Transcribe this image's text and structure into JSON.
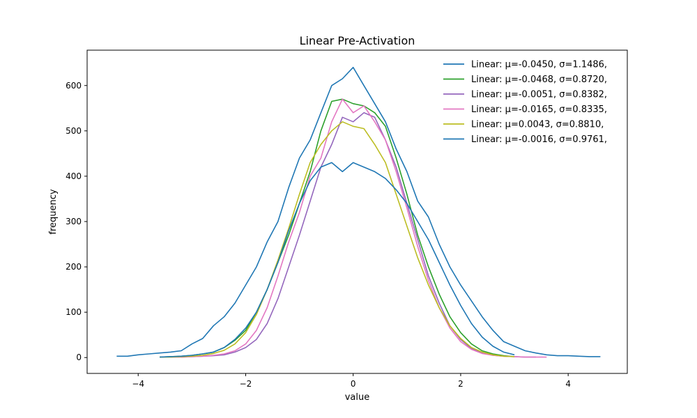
{
  "chart_data": {
    "type": "line",
    "title": "Linear Pre-Activation",
    "xlabel": "value",
    "ylabel": "frequency",
    "xlim": [
      -4.95,
      5.1
    ],
    "ylim": [
      -35,
      678
    ],
    "xticks": [
      -4,
      -2,
      0,
      2,
      4
    ],
    "xtick_labels": [
      "−4",
      "−2",
      "0",
      "2",
      "4"
    ],
    "yticks": [
      0,
      100,
      200,
      300,
      400,
      500,
      600
    ],
    "ytick_labels": [
      "0",
      "100",
      "200",
      "300",
      "400",
      "500",
      "600"
    ],
    "grid": false,
    "legend_position": "top-right",
    "series": [
      {
        "name": "Linear: μ=-0.0450, σ=1.1486,",
        "color": "#1f77b4",
        "x": [
          -4.4,
          -4.2,
          -4.0,
          -3.8,
          -3.6,
          -3.4,
          -3.2,
          -3.0,
          -2.8,
          -2.6,
          -2.4,
          -2.2,
          -2.0,
          -1.8,
          -1.6,
          -1.4,
          -1.2,
          -1.0,
          -0.8,
          -0.6,
          -0.4,
          -0.2,
          0.0,
          0.2,
          0.4,
          0.6,
          0.8,
          1.0,
          1.2,
          1.4,
          1.6,
          1.8,
          2.0,
          2.2,
          2.4,
          2.6,
          2.8,
          3.0,
          3.2,
          3.4,
          3.6,
          3.8,
          4.0,
          4.2,
          4.4,
          4.6
        ],
        "y": [
          3,
          3,
          6,
          8,
          10,
          12,
          15,
          30,
          42,
          70,
          90,
          120,
          160,
          200,
          255,
          300,
          375,
          440,
          480,
          540,
          600,
          615,
          640,
          600,
          560,
          520,
          460,
          410,
          345,
          310,
          250,
          200,
          160,
          125,
          90,
          60,
          35,
          25,
          15,
          10,
          6,
          4,
          4,
          3,
          2,
          2
        ]
      },
      {
        "name": "Linear: μ=-0.0468, σ=0.8720,",
        "color": "#2ca02c",
        "x": [
          -3.6,
          -3.4,
          -3.2,
          -3.0,
          -2.8,
          -2.6,
          -2.4,
          -2.2,
          -2.0,
          -1.8,
          -1.6,
          -1.4,
          -1.2,
          -1.0,
          -0.8,
          -0.6,
          -0.4,
          -0.2,
          0.0,
          0.2,
          0.4,
          0.6,
          0.8,
          1.0,
          1.2,
          1.4,
          1.6,
          1.8,
          2.0,
          2.2,
          2.4,
          2.6,
          2.8,
          3.0
        ],
        "y": [
          1,
          2,
          3,
          5,
          8,
          12,
          22,
          38,
          60,
          100,
          150,
          210,
          270,
          340,
          410,
          500,
          565,
          570,
          560,
          555,
          540,
          510,
          440,
          360,
          270,
          200,
          140,
          90,
          55,
          30,
          15,
          8,
          4,
          2
        ]
      },
      {
        "name": "Linear: μ=-0.0051, σ=0.8382,",
        "color": "#9467bd",
        "x": [
          -3.2,
          -3.0,
          -2.8,
          -2.6,
          -2.4,
          -2.2,
          -2.0,
          -1.8,
          -1.6,
          -1.4,
          -1.2,
          -1.0,
          -0.8,
          -0.6,
          -0.4,
          -0.2,
          0.0,
          0.2,
          0.4,
          0.6,
          0.8,
          1.0,
          1.2,
          1.4,
          1.6,
          1.8,
          2.0,
          2.2,
          2.4,
          2.6,
          2.8,
          3.0,
          3.2,
          3.4
        ],
        "y": [
          1,
          2,
          3,
          4,
          6,
          12,
          22,
          40,
          75,
          130,
          200,
          270,
          345,
          420,
          470,
          530,
          520,
          540,
          530,
          480,
          420,
          340,
          260,
          180,
          120,
          70,
          40,
          20,
          10,
          5,
          3,
          2,
          1,
          1
        ]
      },
      {
        "name": "Linear: μ=-0.0165, σ=0.8335,",
        "color": "#e377c2",
        "x": [
          -3.4,
          -3.2,
          -3.0,
          -2.8,
          -2.6,
          -2.4,
          -2.2,
          -2.0,
          -1.8,
          -1.6,
          -1.4,
          -1.2,
          -1.0,
          -0.8,
          -0.6,
          -0.4,
          -0.2,
          0.0,
          0.2,
          0.4,
          0.6,
          0.8,
          1.0,
          1.2,
          1.4,
          1.6,
          1.8,
          2.0,
          2.2,
          2.4,
          2.6,
          2.8,
          3.0,
          3.2,
          3.4,
          3.6
        ],
        "y": [
          1,
          1,
          2,
          3,
          5,
          8,
          15,
          30,
          60,
          110,
          180,
          255,
          320,
          400,
          440,
          520,
          570,
          540,
          555,
          520,
          480,
          410,
          330,
          245,
          170,
          110,
          65,
          35,
          18,
          9,
          5,
          3,
          2,
          1,
          1,
          1
        ]
      },
      {
        "name": "Linear: μ=0.0043, σ=0.8810,",
        "color": "#bcbd22",
        "x": [
          -3.6,
          -3.4,
          -3.2,
          -3.0,
          -2.8,
          -2.6,
          -2.4,
          -2.2,
          -2.0,
          -1.8,
          -1.6,
          -1.4,
          -1.2,
          -1.0,
          -0.8,
          -0.6,
          -0.4,
          -0.2,
          0.0,
          0.2,
          0.4,
          0.6,
          0.8,
          1.0,
          1.2,
          1.4,
          1.6,
          1.8,
          2.0,
          2.2,
          2.4,
          2.6,
          2.8,
          3.0
        ],
        "y": [
          1,
          1,
          2,
          3,
          5,
          9,
          16,
          30,
          55,
          95,
          150,
          215,
          285,
          360,
          430,
          470,
          500,
          520,
          510,
          505,
          470,
          430,
          360,
          290,
          220,
          160,
          110,
          70,
          42,
          22,
          12,
          6,
          3,
          2
        ]
      },
      {
        "name": "Linear: μ=-0.0016, σ=0.9761,",
        "color": "#1f77b4",
        "x": [
          -3.6,
          -3.4,
          -3.2,
          -3.0,
          -2.8,
          -2.6,
          -2.4,
          -2.2,
          -2.0,
          -1.8,
          -1.6,
          -1.4,
          -1.2,
          -1.0,
          -0.8,
          -0.6,
          -0.4,
          -0.2,
          0.0,
          0.2,
          0.4,
          0.6,
          0.8,
          1.0,
          1.2,
          1.4,
          1.6,
          1.8,
          2.0,
          2.2,
          2.4,
          2.6,
          2.8,
          3.0
        ],
        "y": [
          1,
          2,
          3,
          5,
          8,
          12,
          22,
          40,
          65,
          100,
          150,
          210,
          280,
          340,
          390,
          420,
          430,
          410,
          430,
          420,
          410,
          395,
          370,
          340,
          300,
          260,
          210,
          160,
          115,
          75,
          45,
          25,
          12,
          6
        ]
      }
    ]
  }
}
